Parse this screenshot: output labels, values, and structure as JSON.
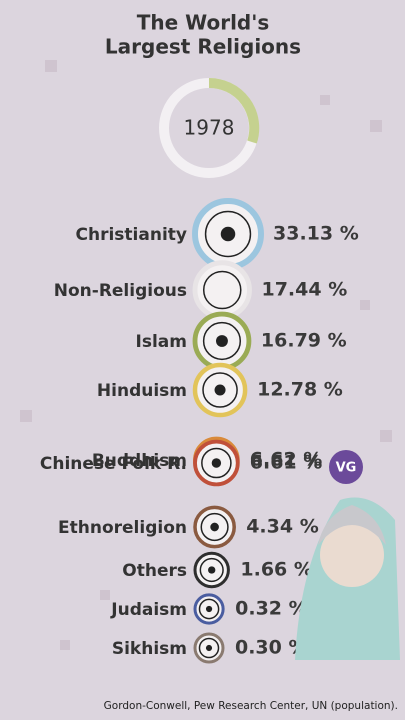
{
  "chart_data": {
    "type": "bubble",
    "title": [
      "The World's",
      "Largest Religions"
    ],
    "year": 1978,
    "categories": [
      "Christianity",
      "Non-Religious",
      "Islam",
      "Hinduism",
      "Buddhism",
      "Chinese Folk R.",
      "Ethnoreligion",
      "Others",
      "Judaism",
      "Sikhism"
    ],
    "values": [
      33.13,
      17.44,
      16.79,
      12.78,
      6.62,
      6.61,
      4.34,
      1.66,
      0.32,
      0.3
    ],
    "value_labels": [
      "33.13 %",
      "17.44 %",
      "16.79 %",
      "12.78 %",
      "6.62 %",
      "6.61 %",
      "4.34 %",
      "1.66 %",
      "0.32 %",
      "0.30 %"
    ],
    "colors": [
      "#9cc6df",
      "#e8e4e6",
      "#9aab55",
      "#e2c45a",
      "#d98a3a",
      "#c0503a",
      "#8a5a40",
      "#2e2e2e",
      "#4a5da0",
      "#8a7a70"
    ],
    "logo": "VG",
    "source": "Gordon-Conwell, Pew Research Center, UN (population)."
  }
}
